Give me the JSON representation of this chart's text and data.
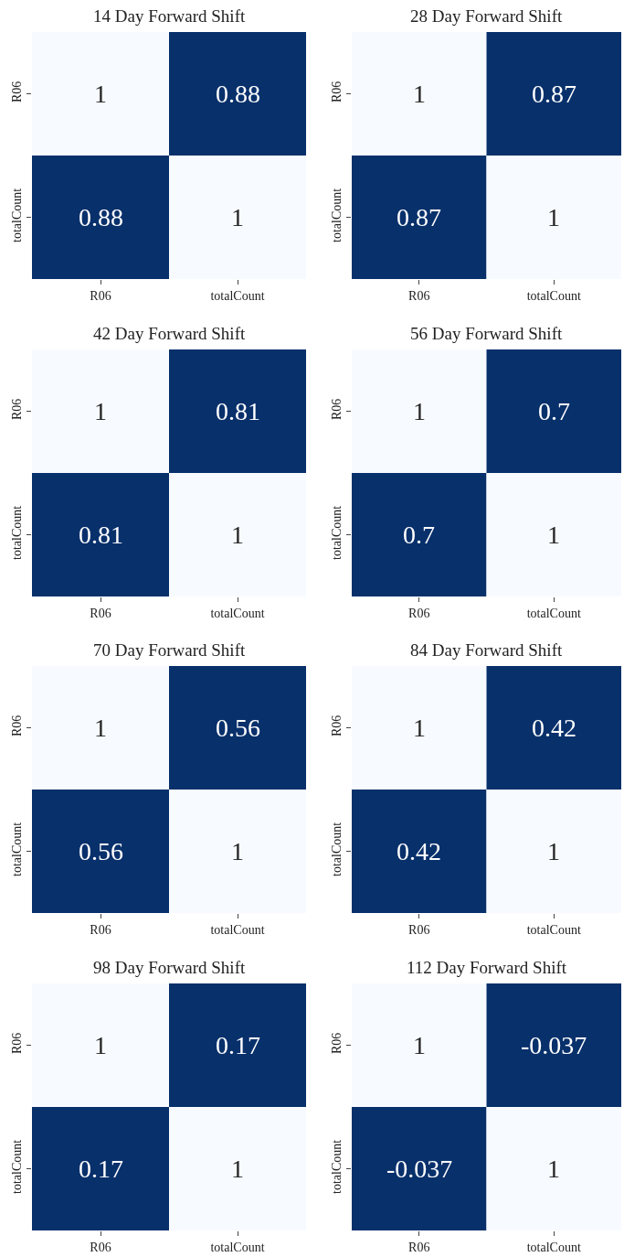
{
  "chart_data": [
    {
      "type": "heatmap",
      "title": "14 Day Forward Shift",
      "categories": [
        "R06",
        "totalCount"
      ],
      "y_categories": [
        "R06",
        "totalCount"
      ],
      "cells": [
        [
          1,
          0.88
        ],
        [
          0.88,
          1
        ]
      ],
      "data_labels": true
    },
    {
      "type": "heatmap",
      "title": "28 Day Forward Shift",
      "categories": [
        "R06",
        "totalCount"
      ],
      "y_categories": [
        "R06",
        "totalCount"
      ],
      "cells": [
        [
          1,
          0.87
        ],
        [
          0.87,
          1
        ]
      ],
      "data_labels": true
    },
    {
      "type": "heatmap",
      "title": "42 Day Forward Shift",
      "categories": [
        "R06",
        "totalCount"
      ],
      "y_categories": [
        "R06",
        "totalCount"
      ],
      "cells": [
        [
          1,
          0.81
        ],
        [
          0.81,
          1
        ]
      ],
      "data_labels": true
    },
    {
      "type": "heatmap",
      "title": "56 Day Forward Shift",
      "categories": [
        "R06",
        "totalCount"
      ],
      "y_categories": [
        "R06",
        "totalCount"
      ],
      "cells": [
        [
          1,
          0.7
        ],
        [
          0.7,
          1
        ]
      ],
      "data_labels": true
    },
    {
      "type": "heatmap",
      "title": "70 Day Forward Shift",
      "categories": [
        "R06",
        "totalCount"
      ],
      "y_categories": [
        "R06",
        "totalCount"
      ],
      "cells": [
        [
          1,
          0.56
        ],
        [
          0.56,
          1
        ]
      ],
      "data_labels": true
    },
    {
      "type": "heatmap",
      "title": "84 Day Forward Shift",
      "categories": [
        "R06",
        "totalCount"
      ],
      "y_categories": [
        "R06",
        "totalCount"
      ],
      "cells": [
        [
          1,
          0.42
        ],
        [
          0.42,
          1
        ]
      ],
      "data_labels": true
    },
    {
      "type": "heatmap",
      "title": "98 Day Forward Shift",
      "categories": [
        "R06",
        "totalCount"
      ],
      "y_categories": [
        "R06",
        "totalCount"
      ],
      "cells": [
        [
          1,
          0.17
        ],
        [
          0.17,
          1
        ]
      ],
      "data_labels": true
    },
    {
      "type": "heatmap",
      "title": "112 Day Forward Shift",
      "categories": [
        "R06",
        "totalCount"
      ],
      "y_categories": [
        "R06",
        "totalCount"
      ],
      "cells": [
        [
          1,
          -0.037
        ],
        [
          -0.037,
          1
        ]
      ],
      "data_labels": true
    }
  ]
}
